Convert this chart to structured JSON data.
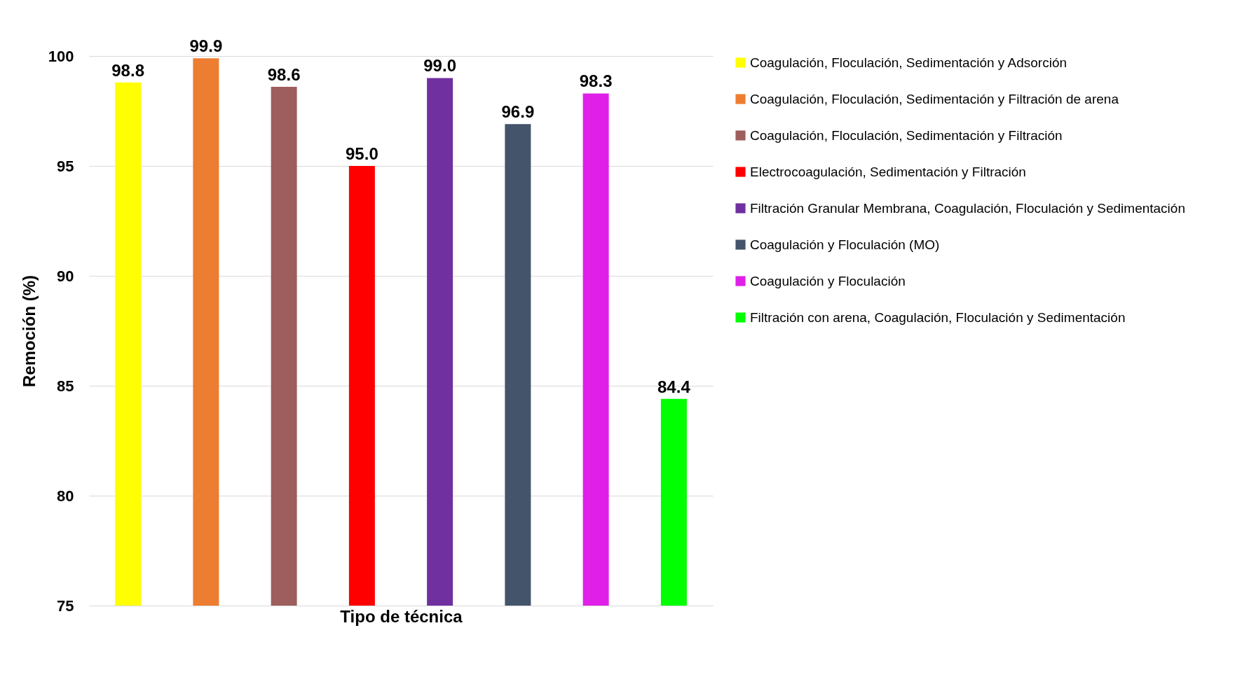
{
  "chart_data": {
    "type": "bar",
    "xlabel": "Tipo de técnica",
    "ylabel": "Remoción (%)",
    "categories": [
      null,
      null,
      null,
      null,
      null,
      null,
      null,
      null
    ],
    "series": [
      {
        "name": "Coagulación, Floculación, Sedimentación y Adsorción",
        "color": "#ffff00",
        "values": [
          98.8,
          null,
          null,
          null,
          null,
          null,
          null,
          null
        ],
        "value_labels": [
          "98.8",
          null,
          null,
          null,
          null,
          null,
          null,
          null
        ]
      },
      {
        "name": "Coagulación, Floculación, Sedimentación y Filtración de arena",
        "color": "#ed7d31",
        "values": [
          null,
          99.9,
          null,
          null,
          null,
          null,
          null,
          null
        ],
        "value_labels": [
          null,
          "99.9",
          null,
          null,
          null,
          null,
          null,
          null
        ]
      },
      {
        "name": "Coagulación, Floculación, Sedimentación y Filtración",
        "color": "#9e5e5e",
        "values": [
          null,
          null,
          98.6,
          null,
          null,
          null,
          null,
          null
        ],
        "value_labels": [
          null,
          null,
          "98.6",
          null,
          null,
          null,
          null,
          null
        ]
      },
      {
        "name": "Electrocoagulación, Sedimentación y Filtración",
        "color": "#ff0000",
        "values": [
          null,
          null,
          null,
          95,
          null,
          null,
          null,
          null
        ],
        "value_labels": [
          null,
          null,
          null,
          "95.0",
          null,
          null,
          null,
          null
        ]
      },
      {
        "name": "Filtración Granular Membrana, Coagulación, Floculación y Sedimentación",
        "color": "#7030a0",
        "values": [
          null,
          null,
          null,
          null,
          99,
          null,
          null,
          null
        ],
        "value_labels": [
          null,
          null,
          null,
          null,
          "99.0",
          null,
          null,
          null
        ]
      },
      {
        "name": "Coagulación y Floculación (MO)",
        "color": "#44546a",
        "values": [
          null,
          null,
          null,
          null,
          null,
          96.9,
          null,
          null
        ],
        "value_labels": [
          null,
          null,
          null,
          null,
          null,
          "96.9",
          null,
          null
        ]
      },
      {
        "name": "Coagulación y Floculación",
        "color": "#e020e8",
        "values": [
          null,
          null,
          null,
          null,
          null,
          null,
          98.3,
          null
        ],
        "value_labels": [
          null,
          null,
          null,
          null,
          null,
          null,
          "98.3",
          null
        ]
      },
      {
        "name": "Filtración con arena, Coagulación, Floculación y Sedimentación",
        "color": "#00ff00",
        "values": [
          null,
          null,
          null,
          null,
          null,
          null,
          null,
          84.4
        ],
        "value_labels": [
          null,
          null,
          null,
          null,
          null,
          null,
          null,
          "84.4"
        ]
      }
    ],
    "ylim": [
      75,
      100
    ],
    "yticks": [
      75,
      80,
      85,
      90,
      95,
      100
    ],
    "grid": "y",
    "legend": "right"
  }
}
